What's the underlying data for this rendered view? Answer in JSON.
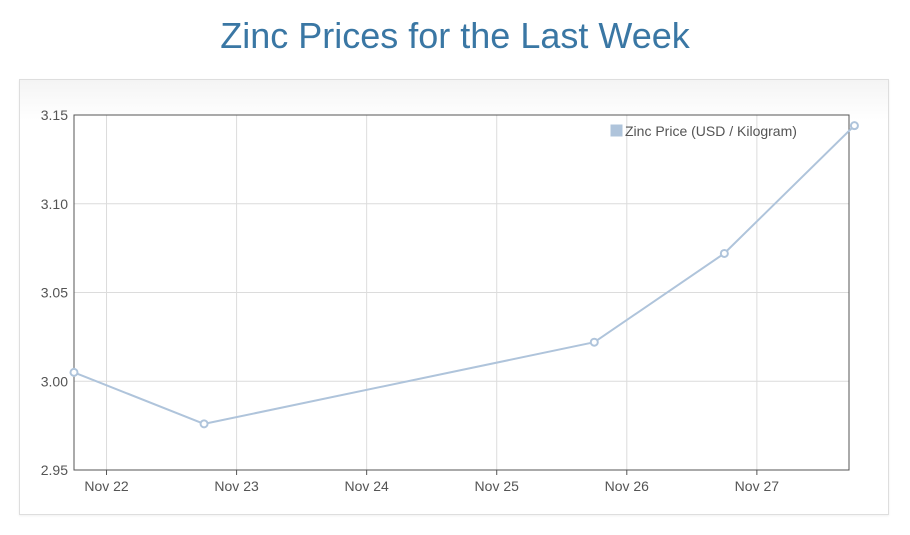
{
  "page": {
    "title": "Zinc Prices for the Last Week"
  },
  "colors": {
    "title": "#3a77a4",
    "series": "#afc4db",
    "grid": "#dcdcdc",
    "axis": "#545454"
  },
  "chart_data": {
    "type": "line",
    "title": "",
    "xlabel": "",
    "ylabel": "",
    "ylim": [
      2.95,
      3.15
    ],
    "yticks": [
      "2.95",
      "3.00",
      "3.05",
      "3.10",
      "3.15"
    ],
    "xlim": [
      "Nov 21 18:00",
      "Nov 27 17:00"
    ],
    "xticks": [
      "Nov 22",
      "Nov 23",
      "Nov 24",
      "Nov 25",
      "Nov 26",
      "Nov 27"
    ],
    "grid": true,
    "legend_position": "top-right",
    "series": [
      {
        "name": "Zinc Price (USD / Kilogram)",
        "points": [
          {
            "x": "Nov 21 18:00",
            "y": 3.005
          },
          {
            "x": "Nov 22 18:00",
            "y": 2.976
          },
          {
            "x": "Nov 25 18:00",
            "y": 3.022
          },
          {
            "x": "Nov 26 18:00",
            "y": 3.072
          },
          {
            "x": "Nov 27 18:00",
            "y": 3.144
          }
        ]
      }
    ]
  }
}
